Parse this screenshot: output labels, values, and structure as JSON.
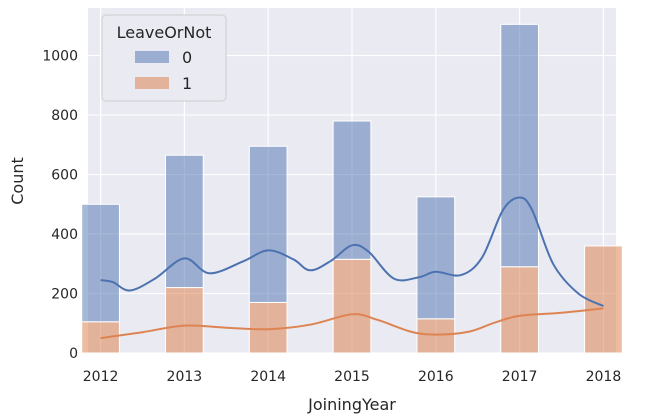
{
  "chart_data": {
    "type": "bar",
    "xlabel": "JoiningYear",
    "ylabel": "Count",
    "xlim": [
      2011.85,
      2018.15
    ],
    "ylim": [
      0,
      1160
    ],
    "x_ticks": [
      2012,
      2013,
      2014,
      2015,
      2016,
      2017,
      2018
    ],
    "y_ticks": [
      0,
      200,
      400,
      600,
      800,
      1000
    ],
    "grid": true,
    "stacked": true,
    "legend": {
      "title": "LeaveOrNot",
      "placement": "top-left"
    },
    "categories": [
      "2012",
      "2013",
      "2014",
      "2015",
      "2016",
      "2017",
      "2018"
    ],
    "series": [
      {
        "name": "0",
        "color": "#4c72b0",
        "values": [
          395,
          445,
          525,
          465,
          410,
          815,
          0
        ],
        "kde": [
          [
            2012.0,
            245
          ],
          [
            2012.15,
            238
          ],
          [
            2012.35,
            210
          ],
          [
            2012.65,
            250
          ],
          [
            2013.0,
            318
          ],
          [
            2013.3,
            268
          ],
          [
            2013.7,
            308
          ],
          [
            2014.0,
            345
          ],
          [
            2014.3,
            315
          ],
          [
            2014.5,
            278
          ],
          [
            2014.75,
            310
          ],
          [
            2015.0,
            362
          ],
          [
            2015.2,
            340
          ],
          [
            2015.5,
            250
          ],
          [
            2015.8,
            255
          ],
          [
            2016.0,
            273
          ],
          [
            2016.3,
            262
          ],
          [
            2016.55,
            320
          ],
          [
            2016.8,
            480
          ],
          [
            2017.0,
            523
          ],
          [
            2017.15,
            480
          ],
          [
            2017.4,
            300
          ],
          [
            2017.7,
            200
          ],
          [
            2018.0,
            158
          ]
        ]
      },
      {
        "name": "1",
        "color": "#dd8452",
        "values": [
          105,
          220,
          170,
          315,
          115,
          290,
          360
        ],
        "kde": [
          [
            2012.0,
            50
          ],
          [
            2012.5,
            70
          ],
          [
            2013.0,
            92
          ],
          [
            2013.5,
            85
          ],
          [
            2014.0,
            80
          ],
          [
            2014.5,
            95
          ],
          [
            2015.0,
            130
          ],
          [
            2015.3,
            112
          ],
          [
            2015.7,
            72
          ],
          [
            2016.0,
            62
          ],
          [
            2016.4,
            72
          ],
          [
            2016.7,
            102
          ],
          [
            2017.0,
            125
          ],
          [
            2017.5,
            135
          ],
          [
            2018.0,
            150
          ]
        ]
      }
    ]
  }
}
